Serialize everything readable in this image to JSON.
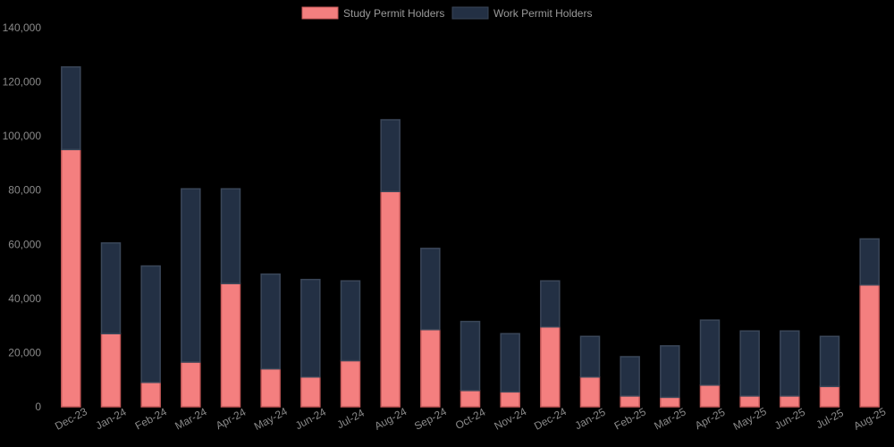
{
  "chart_data": {
    "type": "bar",
    "stacked": true,
    "categories": [
      "Dec-23",
      "Jan-24",
      "Feb-24",
      "Mar-24",
      "Apr-24",
      "May-24",
      "Jun-24",
      "Jul-24",
      "Aug-24",
      "Sep-24",
      "Oct-24",
      "Nov-24",
      "Dec-24",
      "Jan-25",
      "Feb-25",
      "Mar-25",
      "Apr-25",
      "May-25",
      "Jun-25",
      "Jul-25",
      "Aug-25"
    ],
    "series": [
      {
        "name": "Study Permit Holders",
        "color": "#f47f7f",
        "border": "#c85a5a",
        "values": [
          95000,
          27000,
          9000,
          16500,
          45500,
          14000,
          11000,
          17000,
          79500,
          28500,
          6000,
          5500,
          29500,
          11000,
          4000,
          3500,
          8000,
          4000,
          4000,
          7500,
          45000
        ]
      },
      {
        "name": "Work Permit Holders",
        "color": "#233044",
        "border": "#3a4658",
        "values": [
          30500,
          33500,
          43000,
          64000,
          35000,
          35000,
          36000,
          29500,
          26500,
          30000,
          25500,
          21500,
          17000,
          15000,
          14500,
          19000,
          24000,
          24000,
          24000,
          18500,
          17000
        ]
      }
    ],
    "ylim": [
      0,
      140000
    ],
    "yticks": [
      0,
      20000,
      40000,
      60000,
      80000,
      100000,
      120000,
      140000
    ],
    "ytick_labels": [
      "0",
      "20,000",
      "40,000",
      "60,000",
      "80,000",
      "100,000",
      "120,000",
      "140,000"
    ],
    "legend_position": "top-center",
    "grid": false,
    "title": "",
    "xlabel": "",
    "ylabel": ""
  }
}
